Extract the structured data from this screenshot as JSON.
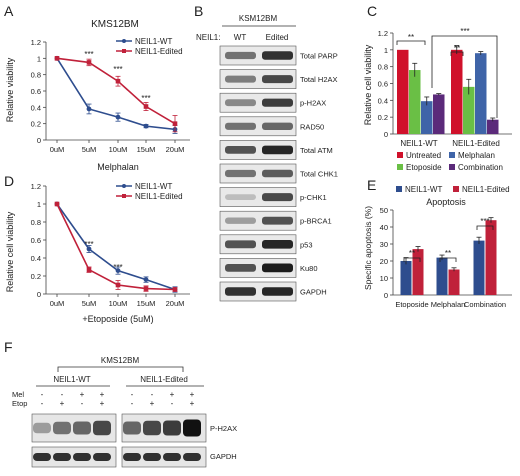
{
  "panels": {
    "A": {
      "label": "A",
      "title": "KMS12BM",
      "legend": [
        "NEIL1-WT",
        "NEIL1-Edited"
      ],
      "ylabel": "Relative viability",
      "xlabel": "Melphalan",
      "yticks": [
        "0",
        "0.2",
        "0.4",
        "0.6",
        "0.8",
        "1",
        "1.2"
      ],
      "xticks": [
        "0uM",
        "5uM",
        "10uM",
        "15uM",
        "20uM"
      ],
      "sig": [
        "***",
        "***",
        "***"
      ]
    },
    "B": {
      "label": "B",
      "title": "KSM12BM",
      "row_header": "NEIL1:",
      "col_labels": [
        "WT",
        "Edited"
      ],
      "proteins": [
        "Total PARP",
        "Total H2AX",
        "p-H2AX",
        "RAD50",
        "Total ATM",
        "Total CHK1",
        "p-CHK1",
        "p-BRCA1",
        "p53",
        "Ku80",
        "GAPDH"
      ]
    },
    "C": {
      "label": "C",
      "ylabel": "Relative cell viability",
      "yticks": [
        "0",
        "0.2",
        "0.4",
        "0.6",
        "0.8",
        "1",
        "1.2"
      ],
      "groups": [
        "NEIL1-WT",
        "NEIL1-Edited"
      ],
      "legend": [
        "Untreated",
        "Etoposide",
        "Melphalan",
        "Combination"
      ],
      "sig": [
        "**",
        "**",
        "***"
      ]
    },
    "D": {
      "label": "D",
      "legend": [
        "NEIL1-WT",
        "NEIL1-Edited"
      ],
      "ylabel": "Relative cell viability",
      "xlabel": "+Etoposide (5uM)",
      "yticks": [
        "0",
        "0.2",
        "0.4",
        "0.6",
        "0.8",
        "1",
        "1.2"
      ],
      "xticks": [
        "0uM",
        "5uM",
        "10uM",
        "15uM",
        "20uM"
      ],
      "sig": [
        "***",
        "***"
      ]
    },
    "E": {
      "label": "E",
      "title": "Apoptosis",
      "legend": [
        "NEIL1-WT",
        "NEIL1-Edited"
      ],
      "ylabel": "Specific apoptosis (%)",
      "yticks": [
        "0",
        "10",
        "20",
        "30",
        "40",
        "50"
      ],
      "categories": [
        "Etoposide",
        "Melphalan",
        "Combination"
      ],
      "sig": [
        "**",
        "**",
        "***"
      ]
    },
    "F": {
      "label": "F",
      "title": "KMS12BM",
      "groups": [
        "NEIL1-WT",
        "NEIL1-Edited"
      ],
      "row_labels": [
        "Mel",
        "Etop"
      ],
      "mel_marks": [
        "-",
        "-",
        "+",
        "+",
        "-",
        "-",
        "+",
        "+"
      ],
      "etop_marks": [
        "-",
        "+",
        "-",
        "+",
        "-",
        "+",
        "-",
        "+"
      ],
      "proteins": [
        "P-H2AX",
        "GAPDH"
      ]
    }
  },
  "colors": {
    "wt": "#2e4d8e",
    "edited": "#c0213a",
    "untreated": "#d0112b",
    "etoposide": "#6abf45",
    "melphalan": "#3f64a8",
    "combination": "#5b2a7a"
  },
  "chart_data": [
    {
      "type": "line",
      "panel": "A",
      "title": "KMS12BM",
      "x": [
        "0uM",
        "5uM",
        "10uM",
        "15uM",
        "20uM"
      ],
      "xlabel": "Melphalan",
      "ylabel": "Relative viability",
      "ylim": [
        0,
        1.2
      ],
      "series": [
        {
          "name": "NEIL1-WT",
          "values": [
            1.0,
            0.38,
            0.28,
            0.17,
            0.13
          ],
          "errors": [
            0.0,
            0.06,
            0.05,
            0.02,
            0.05
          ]
        },
        {
          "name": "NEIL1-Edited",
          "values": [
            1.0,
            0.95,
            0.72,
            0.41,
            0.2
          ],
          "errors": [
            0.0,
            0.04,
            0.06,
            0.05,
            0.1
          ]
        }
      ]
    },
    {
      "type": "bar",
      "panel": "C",
      "categories": [
        "NEIL1-WT",
        "NEIL1-Edited"
      ],
      "ylabel": "Relative cell viability",
      "ylim": [
        0,
        1.2
      ],
      "series": [
        {
          "name": "Untreated",
          "values": [
            1.0,
            1.0
          ],
          "errors": [
            0.0,
            0.05
          ]
        },
        {
          "name": "Etoposide",
          "values": [
            0.76,
            0.56
          ],
          "errors": [
            0.08,
            0.09
          ]
        },
        {
          "name": "Melphalan",
          "values": [
            0.39,
            0.96
          ],
          "errors": [
            0.05,
            0.02
          ]
        },
        {
          "name": "Combination",
          "values": [
            0.47,
            0.17
          ],
          "errors": [
            0.01,
            0.02
          ]
        }
      ]
    },
    {
      "type": "line",
      "panel": "D",
      "x": [
        "0uM",
        "5uM",
        "10uM",
        "15uM",
        "20uM"
      ],
      "xlabel": "+Etoposide (5uM)",
      "ylabel": "Relative cell viability",
      "ylim": [
        0,
        1.2
      ],
      "series": [
        {
          "name": "NEIL1-WT",
          "values": [
            1.0,
            0.5,
            0.26,
            0.16,
            0.05
          ],
          "errors": [
            0.0,
            0.04,
            0.04,
            0.03,
            0.03
          ]
        },
        {
          "name": "NEIL1-Edited",
          "values": [
            1.0,
            0.27,
            0.1,
            0.06,
            0.05
          ],
          "errors": [
            0.0,
            0.03,
            0.05,
            0.03,
            0.02
          ]
        }
      ]
    },
    {
      "type": "bar",
      "panel": "E",
      "title": "Apoptosis",
      "categories": [
        "Etoposide",
        "Melphalan",
        "Combination"
      ],
      "ylabel": "Specific apoptosis (%)",
      "ylim": [
        0,
        50
      ],
      "series": [
        {
          "name": "NEIL1-WT",
          "values": [
            20,
            22,
            32
          ],
          "errors": [
            2,
            1.5,
            2
          ]
        },
        {
          "name": "NEIL1-Edited",
          "values": [
            27,
            15,
            44
          ],
          "errors": [
            1.5,
            1,
            1.5
          ]
        }
      ]
    }
  ]
}
